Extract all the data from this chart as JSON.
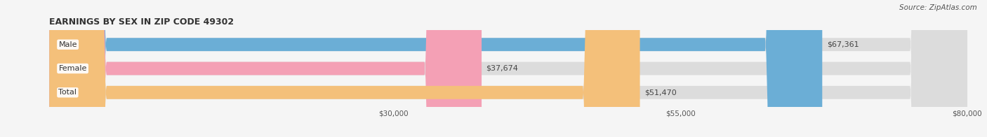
{
  "title": "EARNINGS BY SEX IN ZIP CODE 49302",
  "source": "Source: ZipAtlas.com",
  "categories": [
    "Male",
    "Female",
    "Total"
  ],
  "values": [
    67361,
    37674,
    51470
  ],
  "value_labels": [
    "$67,361",
    "$37,674",
    "$51,470"
  ],
  "bar_colors": [
    "#6baed6",
    "#f4a0b5",
    "#f4c07a"
  ],
  "bg_bar_color": "#dcdcdc",
  "x_min": 0,
  "x_max": 80000,
  "x_ticks": [
    30000,
    55000,
    80000
  ],
  "x_tick_labels": [
    "$30,000",
    "$55,000",
    "$80,000"
  ],
  "bar_height": 0.55,
  "figsize": [
    14.06,
    1.96
  ],
  "dpi": 100,
  "title_fontsize": 9,
  "source_fontsize": 7.5,
  "label_fontsize": 8,
  "tick_fontsize": 7.5,
  "category_fontsize": 8,
  "rounding_size": 5000
}
